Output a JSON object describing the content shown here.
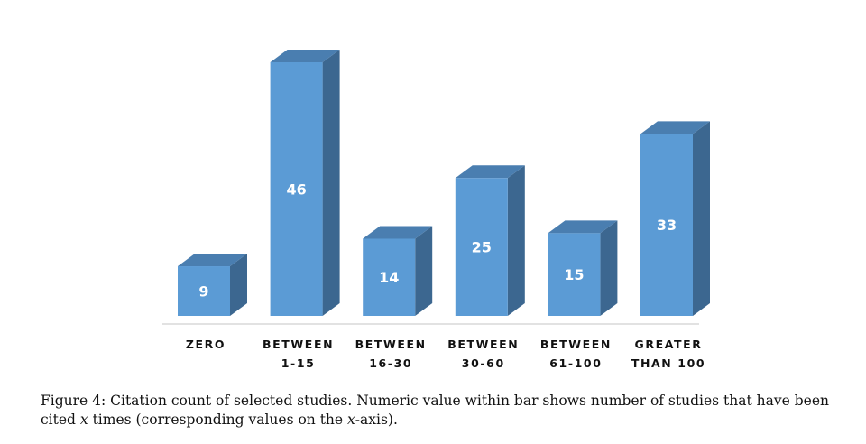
{
  "chart_data": {
    "type": "bar",
    "categories": [
      [
        "ZERO"
      ],
      [
        "BETWEEN",
        "1-15"
      ],
      [
        "BETWEEN",
        "16-30"
      ],
      [
        "BETWEEN",
        "30-60"
      ],
      [
        "BETWEEN",
        "61-100"
      ],
      [
        "GREATER",
        "THAN 100"
      ]
    ],
    "values": [
      9,
      46,
      14,
      25,
      15,
      33
    ],
    "ylim": [
      0,
      46
    ],
    "colors": {
      "front": "#5b9bd5",
      "side": "#3c6790",
      "top": "#4a7eb0",
      "label": "#ffffff",
      "axis": "#d9d9d9"
    }
  },
  "caption": {
    "part1": "Figure 4: Citation count of selected studies. Numeric value within bar shows number of studies that have been cited ",
    "var1": "x",
    "part2": " times (corresponding values on the ",
    "var2": "x",
    "part3": "-axis)."
  }
}
